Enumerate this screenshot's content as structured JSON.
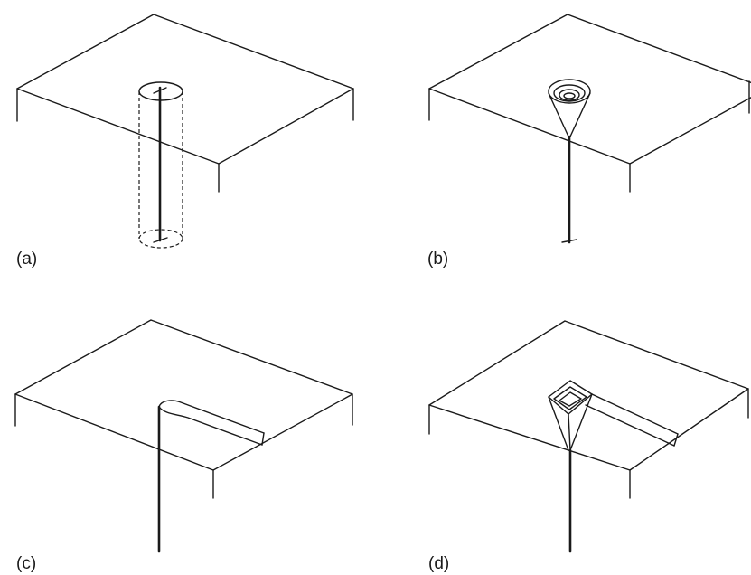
{
  "panels": [
    {
      "id": "a",
      "label": "(a)"
    },
    {
      "id": "b",
      "label": "(b)"
    },
    {
      "id": "c",
      "label": "(c)"
    },
    {
      "id": "d",
      "label": "(d)"
    }
  ]
}
